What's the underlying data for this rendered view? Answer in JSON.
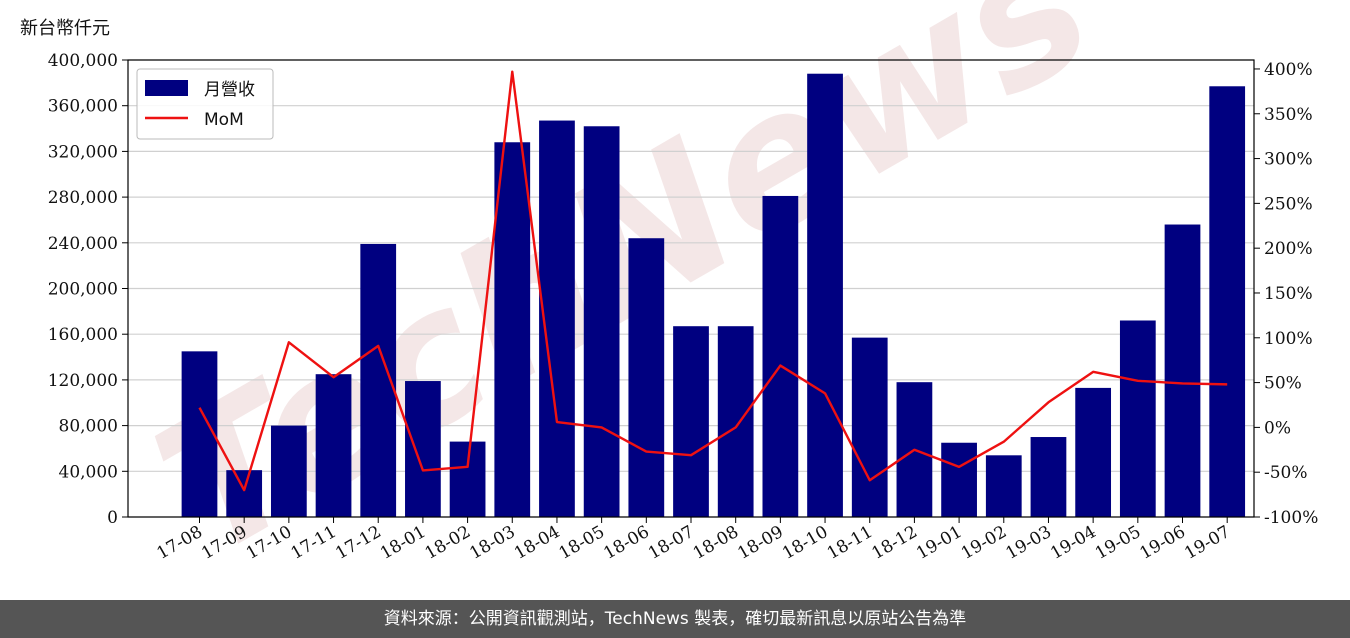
{
  "unit_label": "新台幣仟元",
  "watermark": "TechNews",
  "footer": "資料來源：公開資訊觀測站，TechNews 製表，確切最新訊息以原站公告為準",
  "colors": {
    "bar": "#000080",
    "line": "#ee1111",
    "grid": "#d0d0d0",
    "footer_bg": "#555555"
  },
  "chart_data": {
    "type": "bar",
    "categories": [
      "17-08",
      "17-09",
      "17-10",
      "17-11",
      "17-12",
      "18-01",
      "18-02",
      "18-03",
      "18-04",
      "18-05",
      "18-06",
      "18-07",
      "18-08",
      "18-09",
      "18-10",
      "18-11",
      "18-12",
      "19-01",
      "19-02",
      "19-03",
      "19-04",
      "19-05",
      "19-06",
      "19-07"
    ],
    "series": [
      {
        "name": "月營收",
        "type": "bar",
        "axis": "left",
        "values": [
          145000,
          41000,
          80000,
          125000,
          239000,
          119000,
          66000,
          328000,
          347000,
          342000,
          244000,
          167000,
          167000,
          281000,
          388000,
          157000,
          118000,
          65000,
          54000,
          70000,
          113000,
          172000,
          256000,
          377000
        ]
      },
      {
        "name": "MoM",
        "type": "line",
        "axis": "right",
        "values": [
          22,
          -70,
          95,
          56,
          91,
          -48,
          -44,
          397,
          6,
          0,
          -27,
          -31,
          0,
          69,
          38,
          -59,
          -25,
          -44,
          -16,
          28,
          62,
          52,
          49,
          48
        ]
      }
    ],
    "y_left": {
      "range": [
        0,
        400000
      ],
      "ticks": [
        "0",
        "40,000",
        "80,000",
        "120,000",
        "160,000",
        "200,000",
        "240,000",
        "280,000",
        "320,000",
        "360,000",
        "400,000"
      ]
    },
    "y_right": {
      "range": [
        -100,
        410
      ],
      "ticks": [
        "-100%",
        "-50%",
        "0%",
        "50%",
        "100%",
        "150%",
        "200%",
        "250%",
        "300%",
        "350%",
        "400%"
      ]
    },
    "grid": "horizontal",
    "legend": {
      "position": "top-left",
      "entries": [
        "月營收",
        "MoM"
      ]
    }
  }
}
